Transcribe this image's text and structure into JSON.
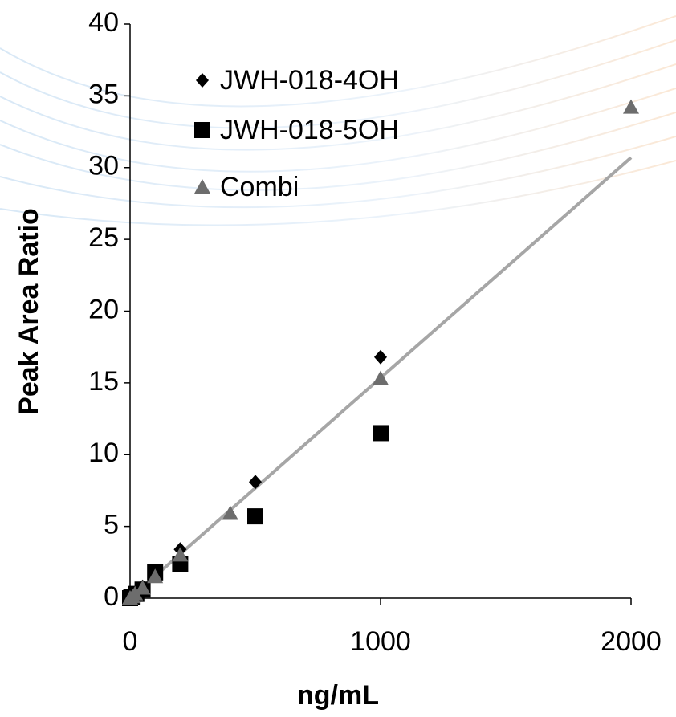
{
  "chart_data": {
    "type": "scatter",
    "x_label": "ng/mL",
    "y_label": "Peak Area Ratio",
    "xlim": [
      0,
      2000
    ],
    "xticks": [
      0,
      1000,
      2000
    ],
    "ylim": [
      0,
      40
    ],
    "yticks": [
      0,
      5,
      10,
      15,
      20,
      25,
      30,
      35,
      40
    ],
    "series": [
      {
        "name": "JWH-018-4OH",
        "color": "#000000",
        "marker": "diamond",
        "x": [
          0,
          5,
          10,
          25,
          50,
          100,
          200,
          500,
          1000
        ],
        "values": [
          0,
          0.1,
          0.2,
          0.4,
          0.8,
          1.7,
          3.4,
          8.1,
          16.8
        ]
      },
      {
        "name": "JWH-018-5OH",
        "color": "#000000",
        "marker": "square",
        "x": [
          0,
          5,
          10,
          25,
          50,
          100,
          200,
          500,
          1000
        ],
        "values": [
          0,
          0.1,
          0.1,
          0.3,
          0.6,
          1.8,
          2.4,
          5.7,
          11.5
        ]
      },
      {
        "name": "Combi",
        "color": "#6d6d6d",
        "marker": "triangle",
        "x": [
          0,
          10,
          20,
          50,
          100,
          200,
          400,
          1000,
          2000
        ],
        "values": [
          0,
          0.1,
          0.3,
          0.7,
          1.5,
          3.0,
          5.9,
          15.3,
          34.2
        ]
      }
    ],
    "trendline": {
      "color": "#a6a6a6",
      "x": [
        0,
        2000
      ],
      "values": [
        0,
        30.7
      ]
    }
  }
}
